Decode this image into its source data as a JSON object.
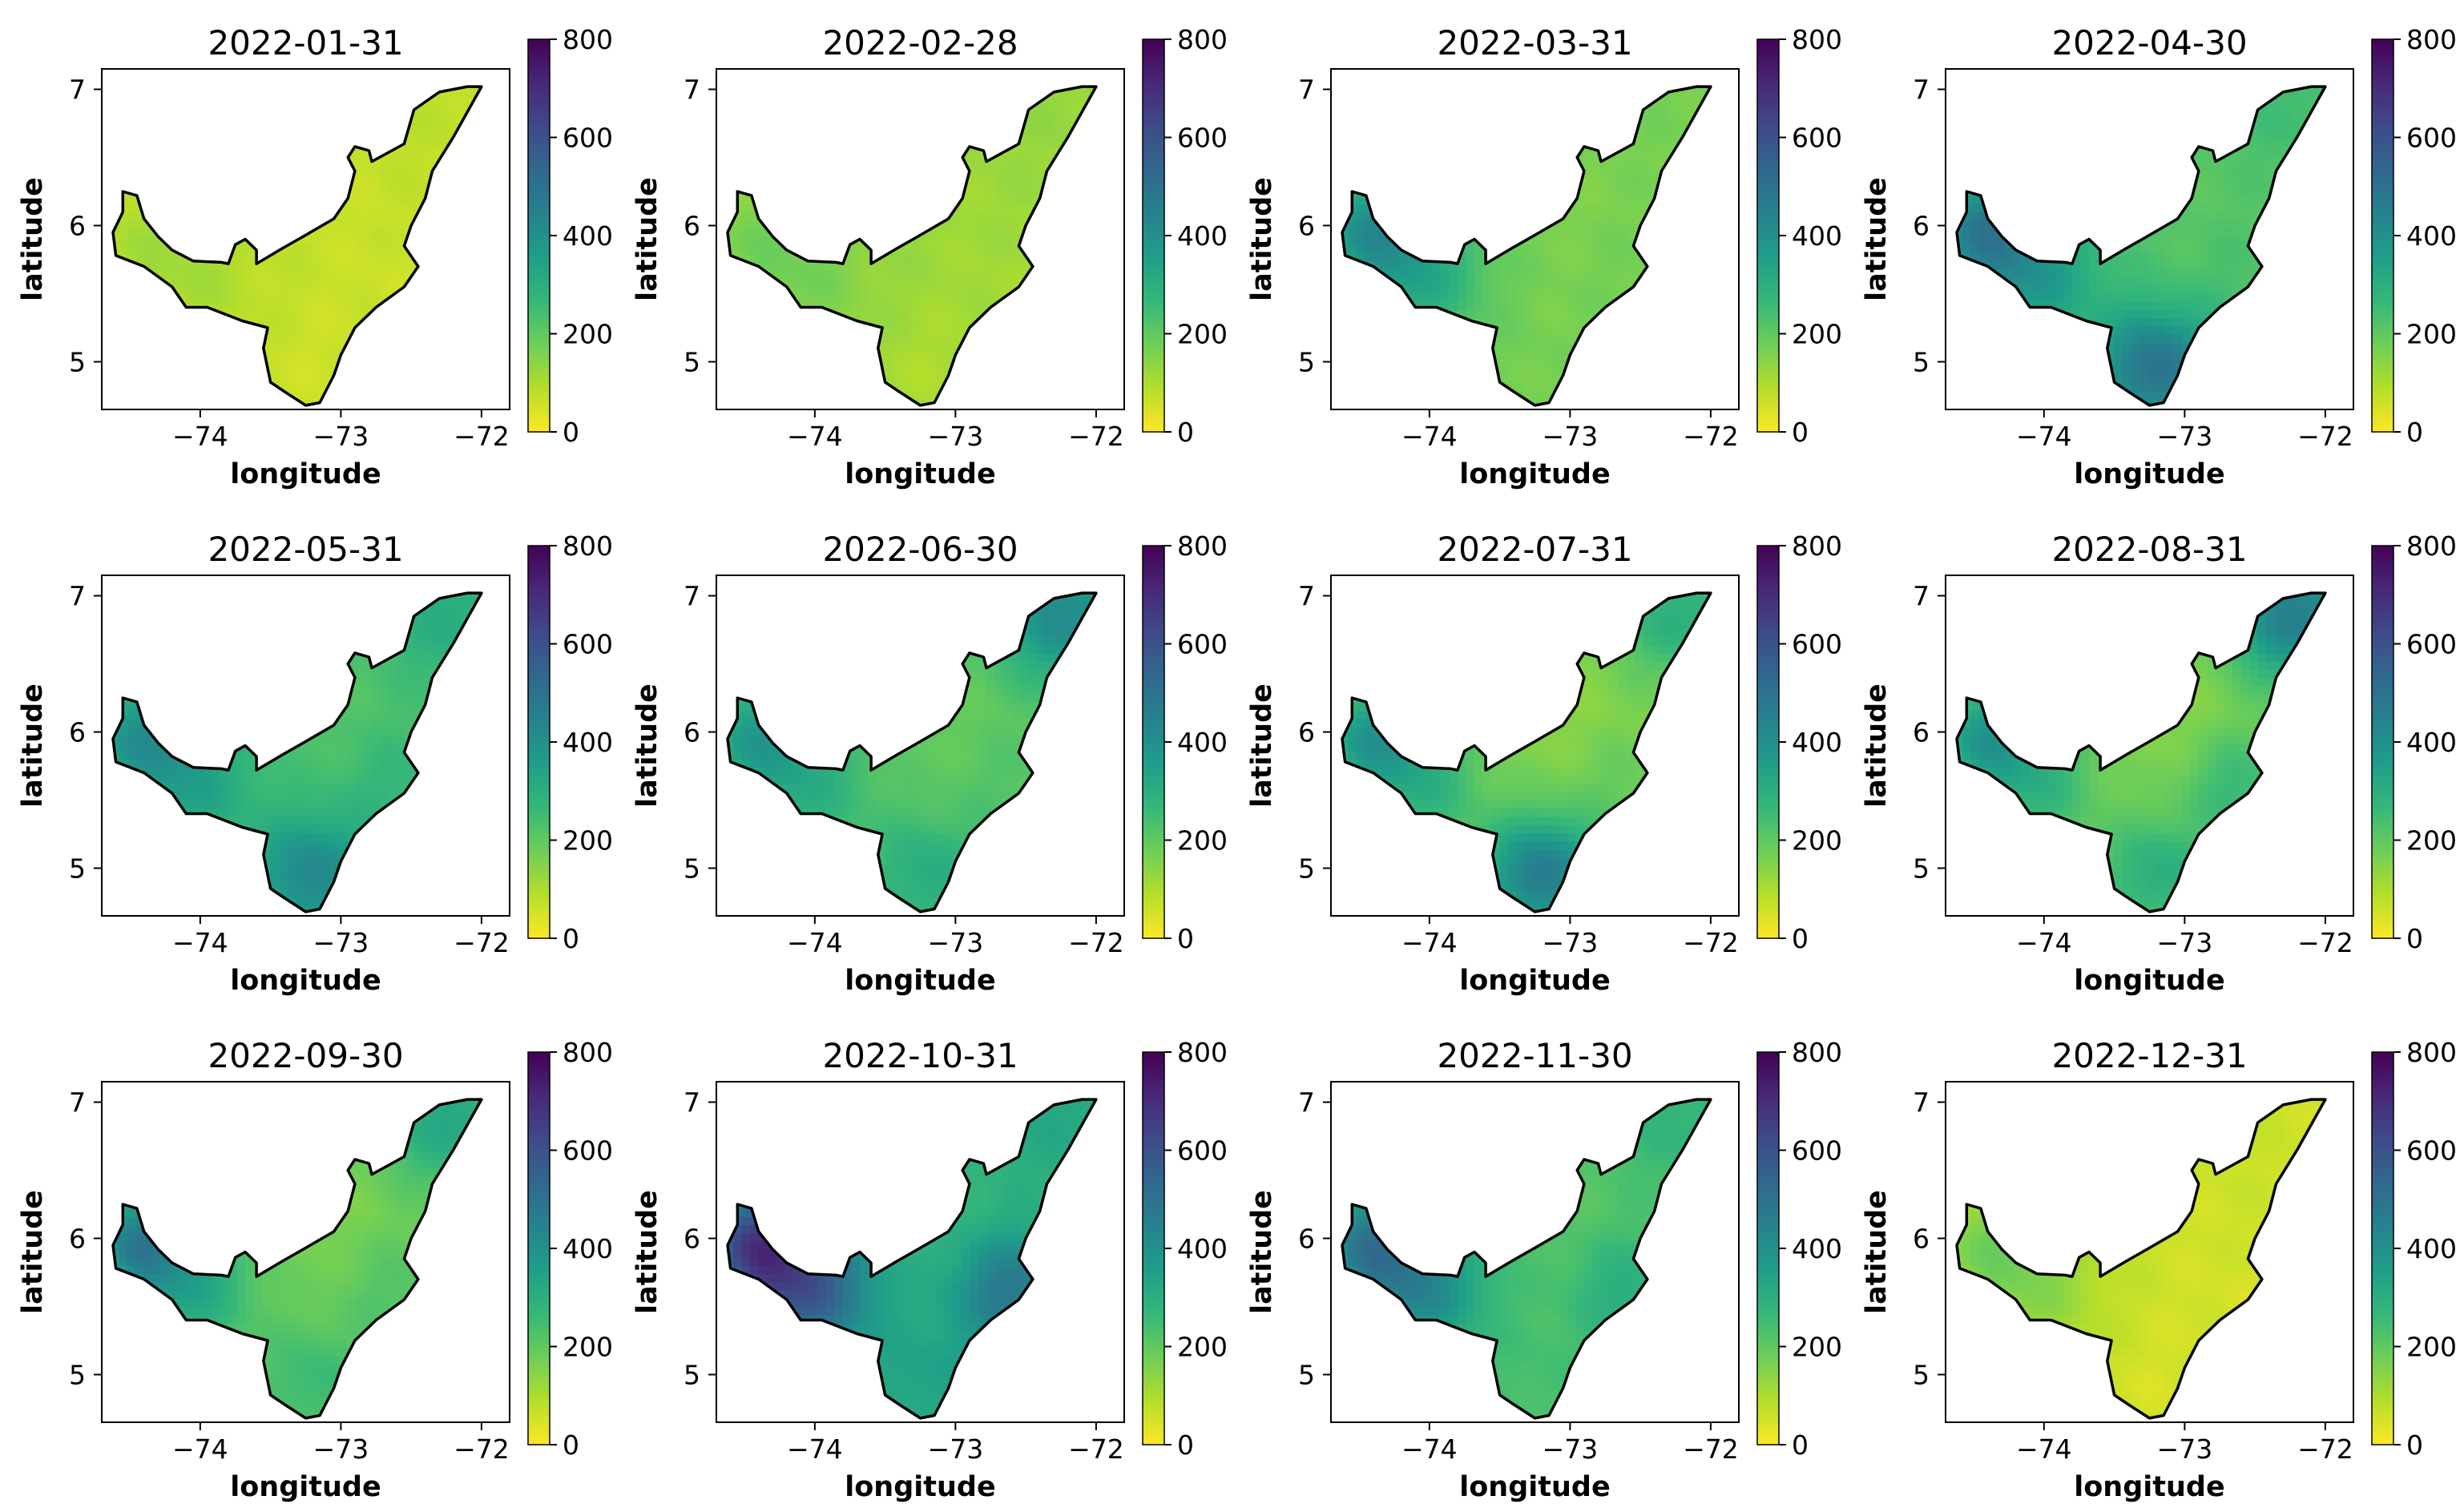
{
  "figure": {
    "description": "Monthly gridded maps of a regional variable (2022)"
  },
  "colors": {
    "viridis_stops": [
      "#440154",
      "#482878",
      "#3e4a89",
      "#31688e",
      "#26828e",
      "#1f9e89",
      "#35b779",
      "#6ece58",
      "#b5de2b",
      "#fde725"
    ],
    "outline": "#000000",
    "axes_frame": "#000000"
  },
  "chart_data": [
    {
      "type": "heatmap",
      "title": "2022-01-31",
      "xlabel": "longitude",
      "ylabel": "latitude",
      "xticks": [
        "−74",
        "−73",
        "−72"
      ],
      "yticks": [
        "5",
        "6",
        "7"
      ],
      "xlim": [
        -74.7,
        -71.8
      ],
      "ylim": [
        4.65,
        7.15
      ],
      "colorbar": {
        "range": [
          0,
          800
        ],
        "ticks": [
          "0",
          "200",
          "400",
          "600",
          "800"
        ]
      },
      "field": {
        "base": 70,
        "west": 110,
        "south": 60,
        "northeast": 80,
        "southeast": 60,
        "northwest_tip": 90
      }
    },
    {
      "type": "heatmap",
      "title": "2022-02-28",
      "xlabel": "longitude",
      "ylabel": "latitude",
      "xticks": [
        "−74",
        "−73",
        "−72"
      ],
      "yticks": [
        "5",
        "6",
        "7"
      ],
      "xlim": [
        -74.7,
        -71.8
      ],
      "ylim": [
        4.65,
        7.15
      ],
      "colorbar": {
        "range": [
          0,
          800
        ],
        "ticks": [
          "0",
          "200",
          "400",
          "600",
          "800"
        ]
      },
      "field": {
        "base": 120,
        "west": 170,
        "south": 100,
        "northeast": 130,
        "southeast": 110,
        "northwest_tip": 150
      }
    },
    {
      "type": "heatmap",
      "title": "2022-03-31",
      "xlabel": "longitude",
      "ylabel": "latitude",
      "xticks": [
        "−74",
        "−73",
        "−72"
      ],
      "yticks": [
        "5",
        "6",
        "7"
      ],
      "xlim": [
        -74.7,
        -71.8
      ],
      "ylim": [
        4.65,
        7.15
      ],
      "colorbar": {
        "range": [
          0,
          800
        ],
        "ticks": [
          "0",
          "200",
          "400",
          "600",
          "800"
        ]
      },
      "field": {
        "base": 160,
        "west": 330,
        "south": 170,
        "northeast": 170,
        "southeast": 170,
        "northwest_tip": 360
      }
    },
    {
      "type": "heatmap",
      "title": "2022-04-30",
      "xlabel": "longitude",
      "ylabel": "latitude",
      "xticks": [
        "−74",
        "−73",
        "−72"
      ],
      "yticks": [
        "5",
        "6",
        "7"
      ],
      "xlim": [
        -74.7,
        -71.8
      ],
      "ylim": [
        4.65,
        7.15
      ],
      "colorbar": {
        "range": [
          0,
          800
        ],
        "ticks": [
          "0",
          "200",
          "400",
          "600",
          "800"
        ]
      },
      "field": {
        "base": 210,
        "west": 380,
        "south": 500,
        "northeast": 250,
        "southeast": 230,
        "northwest_tip": 430
      }
    },
    {
      "type": "heatmap",
      "title": "2022-05-31",
      "xlabel": "longitude",
      "ylabel": "latitude",
      "xticks": [
        "−74",
        "−73",
        "−72"
      ],
      "yticks": [
        "5",
        "6",
        "7"
      ],
      "xlim": [
        -74.7,
        -71.8
      ],
      "ylim": [
        4.65,
        7.15
      ],
      "colorbar": {
        "range": [
          0,
          800
        ],
        "ticks": [
          "0",
          "200",
          "400",
          "600",
          "800"
        ]
      },
      "field": {
        "base": 220,
        "west": 350,
        "south": 430,
        "northeast": 310,
        "southeast": 270,
        "northwest_tip": 360
      }
    },
    {
      "type": "heatmap",
      "title": "2022-06-30",
      "xlabel": "longitude",
      "ylabel": "latitude",
      "xticks": [
        "−74",
        "−73",
        "−72"
      ],
      "yticks": [
        "5",
        "6",
        "7"
      ],
      "xlim": [
        -74.7,
        -71.8
      ],
      "ylim": [
        4.65,
        7.15
      ],
      "colorbar": {
        "range": [
          0,
          800
        ],
        "ticks": [
          "0",
          "200",
          "400",
          "600",
          "800"
        ]
      },
      "field": {
        "base": 190,
        "west": 310,
        "south": 310,
        "northeast": 420,
        "southeast": 220,
        "northwest_tip": 330
      }
    },
    {
      "type": "heatmap",
      "title": "2022-07-31",
      "xlabel": "longitude",
      "ylabel": "latitude",
      "xticks": [
        "−74",
        "−73",
        "−72"
      ],
      "yticks": [
        "5",
        "6",
        "7"
      ],
      "xlim": [
        -74.7,
        -71.8
      ],
      "ylim": [
        4.65,
        7.15
      ],
      "colorbar": {
        "range": [
          0,
          800
        ],
        "ticks": [
          "0",
          "200",
          "400",
          "600",
          "800"
        ]
      },
      "field": {
        "base": 140,
        "west": 300,
        "south": 470,
        "northeast": 300,
        "southeast": 190,
        "northwest_tip": 330
      }
    },
    {
      "type": "heatmap",
      "title": "2022-08-31",
      "xlabel": "longitude",
      "ylabel": "latitude",
      "xticks": [
        "−74",
        "−73",
        "−72"
      ],
      "yticks": [
        "5",
        "6",
        "7"
      ],
      "xlim": [
        -74.7,
        -71.8
      ],
      "ylim": [
        4.65,
        7.15
      ],
      "colorbar": {
        "range": [
          0,
          800
        ],
        "ticks": [
          "0",
          "200",
          "400",
          "600",
          "800"
        ]
      },
      "field": {
        "base": 140,
        "west": 290,
        "south": 300,
        "northeast": 460,
        "southeast": 260,
        "northwest_tip": 330
      }
    },
    {
      "type": "heatmap",
      "title": "2022-09-30",
      "xlabel": "longitude",
      "ylabel": "latitude",
      "xticks": [
        "−74",
        "−73",
        "−72"
      ],
      "yticks": [
        "5",
        "6",
        "7"
      ],
      "xlim": [
        -74.7,
        -71.8
      ],
      "ylim": [
        4.65,
        7.15
      ],
      "colorbar": {
        "range": [
          0,
          800
        ],
        "ticks": [
          "0",
          "200",
          "400",
          "600",
          "800"
        ]
      },
      "field": {
        "base": 160,
        "west": 330,
        "south": 260,
        "northeast": 330,
        "southeast": 220,
        "northwest_tip": 420
      }
    },
    {
      "type": "heatmap",
      "title": "2022-10-31",
      "xlabel": "longitude",
      "ylabel": "latitude",
      "xticks": [
        "−74",
        "−73",
        "−72"
      ],
      "yticks": [
        "5",
        "6",
        "7"
      ],
      "xlim": [
        -74.7,
        -71.8
      ],
      "ylim": [
        4.65,
        7.15
      ],
      "colorbar": {
        "range": [
          0,
          800
        ],
        "ticks": [
          "0",
          "200",
          "400",
          "600",
          "800"
        ]
      },
      "field": {
        "base": 270,
        "west": 600,
        "south": 340,
        "northeast": 330,
        "southeast": 480,
        "northwest_tip": 560
      }
    },
    {
      "type": "heatmap",
      "title": "2022-11-30",
      "xlabel": "longitude",
      "ylabel": "latitude",
      "xticks": [
        "−74",
        "−73",
        "−72"
      ],
      "yticks": [
        "5",
        "6",
        "7"
      ],
      "xlim": [
        -74.7,
        -71.8
      ],
      "ylim": [
        4.65,
        7.15
      ],
      "colorbar": {
        "range": [
          0,
          800
        ],
        "ticks": [
          "0",
          "200",
          "400",
          "600",
          "800"
        ]
      },
      "field": {
        "base": 210,
        "west": 440,
        "south": 240,
        "northeast": 280,
        "southeast": 300,
        "northwest_tip": 420
      }
    },
    {
      "type": "heatmap",
      "title": "2022-12-31",
      "xlabel": "longitude",
      "ylabel": "latitude",
      "xticks": [
        "−74",
        "−73",
        "−72"
      ],
      "yticks": [
        "5",
        "6",
        "7"
      ],
      "xlim": [
        -74.7,
        -71.8
      ],
      "ylim": [
        4.65,
        7.15
      ],
      "colorbar": {
        "range": [
          0,
          800
        ],
        "ticks": [
          "0",
          "200",
          "400",
          "600",
          "800"
        ]
      },
      "field": {
        "base": 60,
        "west": 150,
        "south": 50,
        "northeast": 60,
        "southeast": 50,
        "northwest_tip": 140
      }
    }
  ]
}
